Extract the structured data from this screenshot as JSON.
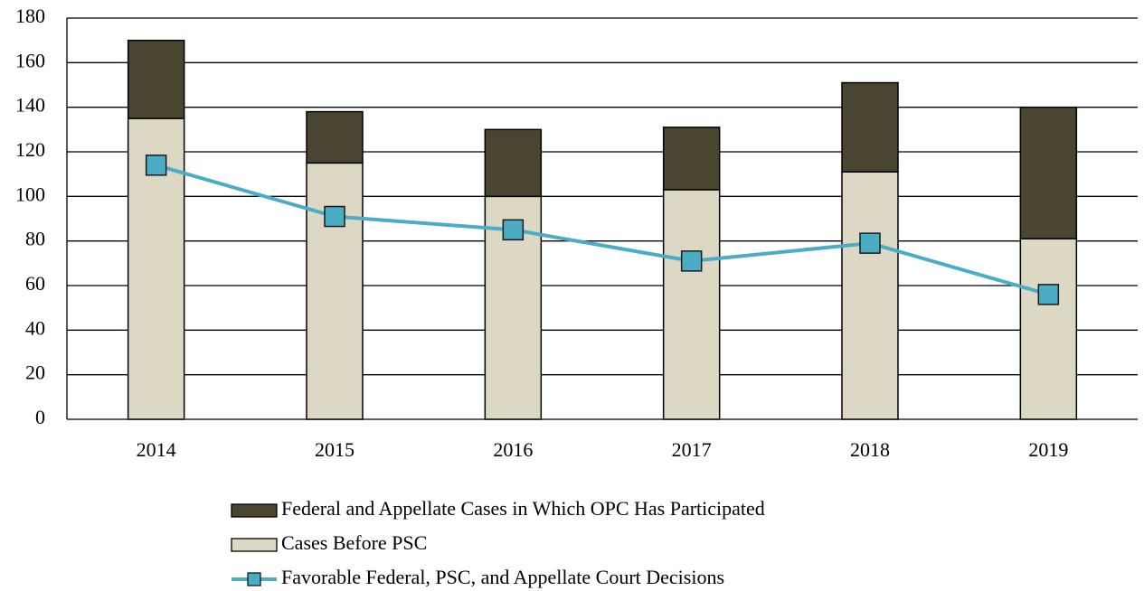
{
  "chart_data": {
    "type": "bar",
    "stacked": true,
    "categories": [
      "2014",
      "2015",
      "2016",
      "2017",
      "2018",
      "2019"
    ],
    "series": [
      {
        "name": "Federal and Appellate Cases in Which OPC Has Participated",
        "kind": "bar",
        "color": "#4a4530",
        "values": [
          35,
          23,
          30,
          28,
          40,
          59
        ]
      },
      {
        "name": "Cases Before PSC",
        "kind": "bar",
        "color": "#ddd8c4",
        "values": [
          135,
          115,
          100,
          103,
          111,
          81
        ]
      },
      {
        "name": "Favorable Federal, PSC, and Appellate Court Decisions",
        "kind": "line",
        "color": "#4bacc6",
        "values": [
          114,
          91,
          85,
          71,
          79,
          56
        ]
      }
    ],
    "ylim": [
      0,
      180
    ],
    "yticks": [
      0,
      20,
      40,
      60,
      80,
      100,
      120,
      140,
      160,
      180
    ],
    "grid": true,
    "legend": "bottom"
  }
}
